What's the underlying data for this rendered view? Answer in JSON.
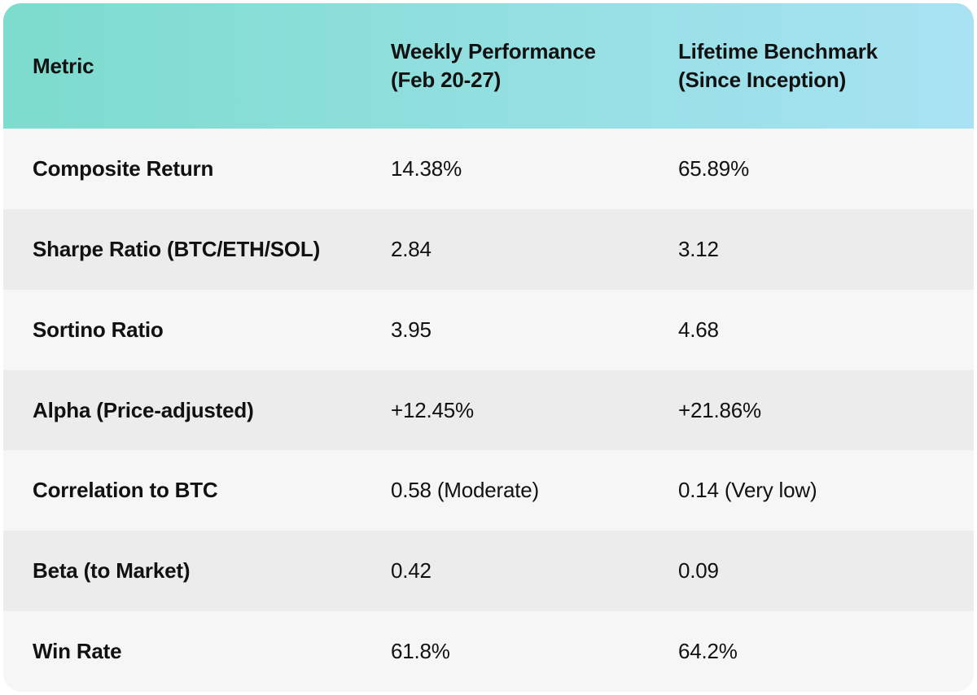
{
  "colors": {
    "header_gradient_start": "#7cdccd",
    "header_gradient_end": "#a8e2f3",
    "row_light": "#f6f6f6",
    "row_dark": "#ececec",
    "text": "#111111"
  },
  "chart_data": {
    "type": "table",
    "columns": [
      "Metric",
      "Weekly Performance (Feb 20-27)",
      "Lifetime Benchmark (Since Inception)"
    ],
    "rows": [
      [
        "Composite Return",
        "14.38%",
        "65.89%"
      ],
      [
        "Sharpe Ratio (BTC/ETH/SOL)",
        "2.84",
        "3.12"
      ],
      [
        "Sortino Ratio",
        "3.95",
        "4.68"
      ],
      [
        "Alpha (Price-adjusted)",
        "+12.45%",
        "+21.86%"
      ],
      [
        "Correlation to BTC",
        "0.58 (Moderate)",
        "0.14 (Very low)"
      ],
      [
        "Beta (to Market)",
        "0.42",
        "0.09"
      ],
      [
        "Win Rate",
        "61.8%",
        "64.2%"
      ]
    ]
  },
  "table": {
    "columns": [
      {
        "label": "Metric",
        "sublabel": ""
      },
      {
        "label": "Weekly Performance",
        "sublabel": "(Feb 20-27)"
      },
      {
        "label": "Lifetime Benchmark",
        "sublabel": "(Since Inception)"
      }
    ],
    "rows": [
      {
        "metric": "Composite Return",
        "weekly": "14.38%",
        "lifetime": "65.89%"
      },
      {
        "metric": "Sharpe Ratio (BTC/ETH/SOL)",
        "weekly": "2.84",
        "lifetime": "3.12"
      },
      {
        "metric": "Sortino Ratio",
        "weekly": "3.95",
        "lifetime": "4.68"
      },
      {
        "metric": "Alpha (Price-adjusted)",
        "weekly": "+12.45%",
        "lifetime": "+21.86%"
      },
      {
        "metric": "Correlation to BTC",
        "weekly": "0.58 (Moderate)",
        "lifetime": "0.14 (Very low)"
      },
      {
        "metric": "Beta (to Market)",
        "weekly": "0.42",
        "lifetime": "0.09"
      },
      {
        "metric": "Win Rate",
        "weekly": "61.8%",
        "lifetime": "64.2%"
      }
    ]
  }
}
